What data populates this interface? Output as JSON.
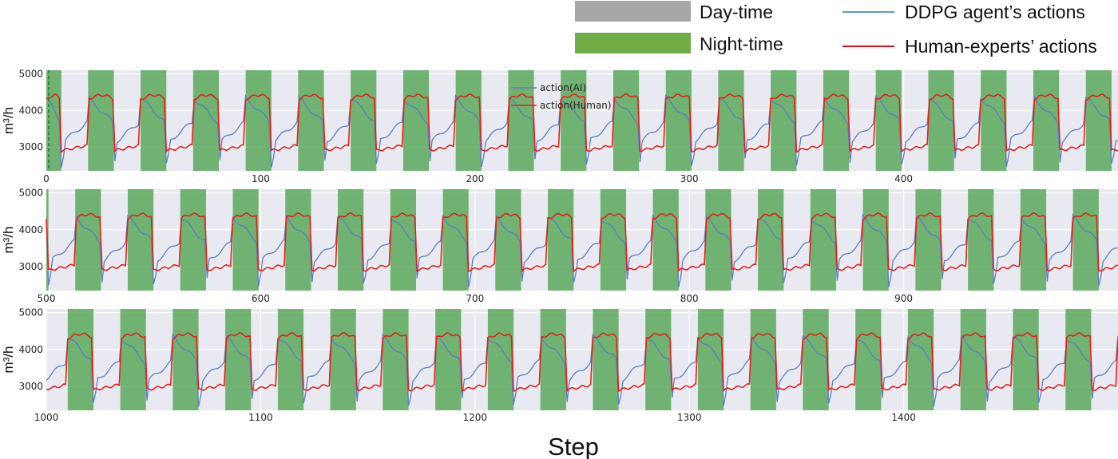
{
  "legend": {
    "items": [
      {
        "label": "Day-time",
        "kind": "patch",
        "color": "#a6a6a6"
      },
      {
        "label": "Night-time",
        "kind": "patch",
        "color": "#70ad47"
      },
      {
        "label": "DDPG agent’s actions",
        "kind": "line",
        "color": "#5b9bd5"
      },
      {
        "label": "Human-experts’ actions",
        "kind": "line",
        "color": "#ee1111"
      }
    ]
  },
  "chart_data": {
    "type": "line",
    "xlabel": "Step",
    "ylabel": "m³/h",
    "colors": {
      "ai": "#5a7fbf",
      "human": "#e8201a",
      "night": "#5aa85a",
      "background": "#e9e9f1"
    },
    "inset_legend": [
      "action(AI)",
      "action(Human)"
    ],
    "ylim": [
      2350,
      5100
    ],
    "yticks": [
      3000,
      4000,
      5000
    ],
    "period": 24.5,
    "night_width": 12,
    "panels": [
      {
        "xlim": [
          0,
          500
        ],
        "xticks": [
          0,
          100,
          200,
          300,
          400
        ],
        "first_night_start": 0,
        "first_night_width": 7,
        "night_offset": 19.5
      },
      {
        "xlim": [
          500,
          1000
        ],
        "xticks": [
          500,
          600,
          700,
          800,
          900
        ],
        "first_night_start": 500,
        "first_night_width": 1,
        "night_offset": 513.5
      },
      {
        "xlim": [
          1000,
          1500
        ],
        "xticks": [
          1000,
          1100,
          1200,
          1300,
          1400
        ],
        "first_night_start": null,
        "first_night_width": 0,
        "night_offset": 1010
      }
    ],
    "series": [
      {
        "name": "action(AI)",
        "color": "#5a7fbf",
        "day_start": 3100,
        "day_end": 3700,
        "night_start": 4350,
        "night_end": 3650,
        "dip": 2500
      },
      {
        "name": "action(Human)",
        "color": "#e8201a",
        "day_start": 2900,
        "day_end": 3050,
        "night_level": 4300
      }
    ]
  }
}
